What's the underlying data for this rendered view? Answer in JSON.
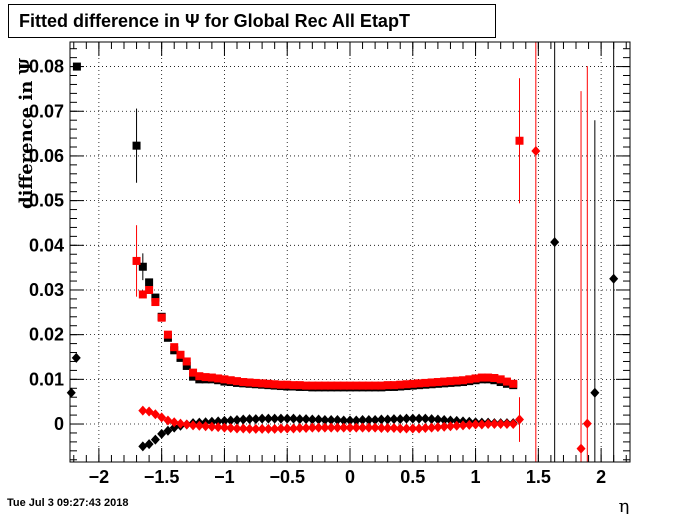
{
  "timestamp": "Tue Jul  3 09:27:43 2018",
  "chart_data": {
    "type": "scatter",
    "title": "Fitted difference in  Ψ  for Global Rec All EtapT",
    "xlabel": "η",
    "ylabel": "difference in Ψ",
    "xlim": [
      -2.23,
      2.23
    ],
    "ylim": [
      -0.0085,
      0.0855
    ],
    "grid": true,
    "x_ticks": [
      -2,
      -1.5,
      -1,
      -0.5,
      0,
      0.5,
      1,
      1.5,
      2
    ],
    "x_tick_labels": [
      "−2",
      "−1.5",
      "−1",
      "−0.5",
      "0",
      "0.5",
      "1",
      "1.5",
      "2"
    ],
    "y_ticks": [
      0,
      0.01,
      0.02,
      0.03,
      0.04,
      0.05,
      0.06,
      0.07,
      0.08
    ],
    "y_tick_labels": [
      "0",
      "0.01",
      "0.02",
      "0.03",
      "0.04",
      "0.05",
      "0.06",
      "0.07",
      "0.08"
    ],
    "colors": {
      "black": "#000000",
      "red": "#ff0000"
    },
    "series": [
      {
        "color": "black",
        "marker": "square",
        "points": [
          {
            "x": -2.175,
            "y": 0.08
          },
          {
            "x": -1.7,
            "y": 0.0623,
            "err": 0.0083
          },
          {
            "x": -1.65,
            "y": 0.0352,
            "err": 0.003
          },
          {
            "x": -1.6,
            "y": 0.0317
          },
          {
            "x": -1.55,
            "y": 0.0283
          },
          {
            "x": -1.5,
            "y": 0.024
          },
          {
            "x": -1.45,
            "y": 0.0193
          },
          {
            "x": -1.4,
            "y": 0.0165
          },
          {
            "x": -1.35,
            "y": 0.0148
          },
          {
            "x": -1.3,
            "y": 0.013
          },
          {
            "x": -1.25,
            "y": 0.0106
          },
          {
            "x": -1.2,
            "y": 0.01
          },
          {
            "x": -1.15,
            "y": 0.01
          },
          {
            "x": -1.1,
            "y": 0.01
          },
          {
            "x": -1.05,
            "y": 0.0098
          },
          {
            "x": -1.0,
            "y": 0.0095
          },
          {
            "x": -0.95,
            "y": 0.0094
          },
          {
            "x": -0.9,
            "y": 0.0092
          },
          {
            "x": -0.85,
            "y": 0.0091
          },
          {
            "x": -0.8,
            "y": 0.009
          },
          {
            "x": -0.75,
            "y": 0.0089
          },
          {
            "x": -0.7,
            "y": 0.0088
          },
          {
            "x": -0.65,
            "y": 0.0087
          },
          {
            "x": -0.6,
            "y": 0.0086
          },
          {
            "x": -0.55,
            "y": 0.0085
          },
          {
            "x": -0.5,
            "y": 0.0084
          },
          {
            "x": -0.45,
            "y": 0.0084
          },
          {
            "x": -0.4,
            "y": 0.0083
          },
          {
            "x": -0.35,
            "y": 0.0083
          },
          {
            "x": -0.3,
            "y": 0.0082
          },
          {
            "x": -0.25,
            "y": 0.0082
          },
          {
            "x": -0.2,
            "y": 0.0082
          },
          {
            "x": -0.15,
            "y": 0.0082
          },
          {
            "x": -0.1,
            "y": 0.0082
          },
          {
            "x": -0.05,
            "y": 0.0082
          },
          {
            "x": 0.0,
            "y": 0.0082
          },
          {
            "x": 0.05,
            "y": 0.0082
          },
          {
            "x": 0.1,
            "y": 0.0082
          },
          {
            "x": 0.15,
            "y": 0.0082
          },
          {
            "x": 0.2,
            "y": 0.0082
          },
          {
            "x": 0.25,
            "y": 0.0082
          },
          {
            "x": 0.3,
            "y": 0.0083
          },
          {
            "x": 0.35,
            "y": 0.0083
          },
          {
            "x": 0.4,
            "y": 0.0084
          },
          {
            "x": 0.45,
            "y": 0.0085
          },
          {
            "x": 0.5,
            "y": 0.0086
          },
          {
            "x": 0.55,
            "y": 0.0087
          },
          {
            "x": 0.6,
            "y": 0.0088
          },
          {
            "x": 0.65,
            "y": 0.0089
          },
          {
            "x": 0.7,
            "y": 0.009
          },
          {
            "x": 0.75,
            "y": 0.0091
          },
          {
            "x": 0.8,
            "y": 0.0092
          },
          {
            "x": 0.85,
            "y": 0.0093
          },
          {
            "x": 0.9,
            "y": 0.0094
          },
          {
            "x": 0.95,
            "y": 0.0096
          },
          {
            "x": 1.0,
            "y": 0.0098
          },
          {
            "x": 1.05,
            "y": 0.01
          },
          {
            "x": 1.1,
            "y": 0.01
          },
          {
            "x": 1.15,
            "y": 0.0098
          },
          {
            "x": 1.2,
            "y": 0.0094
          },
          {
            "x": 1.25,
            "y": 0.009
          },
          {
            "x": 1.3,
            "y": 0.0087
          }
        ]
      },
      {
        "color": "red",
        "marker": "square",
        "points": [
          {
            "x": -1.7,
            "y": 0.0365,
            "err": 0.008
          },
          {
            "x": -1.65,
            "y": 0.029
          },
          {
            "x": -1.6,
            "y": 0.03
          },
          {
            "x": -1.55,
            "y": 0.0273
          },
          {
            "x": -1.5,
            "y": 0.0238
          },
          {
            "x": -1.45,
            "y": 0.02
          },
          {
            "x": -1.4,
            "y": 0.0172
          },
          {
            "x": -1.35,
            "y": 0.0155
          },
          {
            "x": -1.3,
            "y": 0.014
          },
          {
            "x": -1.25,
            "y": 0.0115
          },
          {
            "x": -1.2,
            "y": 0.0107
          },
          {
            "x": -1.15,
            "y": 0.0105
          },
          {
            "x": -1.1,
            "y": 0.0104
          },
          {
            "x": -1.05,
            "y": 0.0102
          },
          {
            "x": -1.0,
            "y": 0.01
          },
          {
            "x": -0.95,
            "y": 0.0098
          },
          {
            "x": -0.9,
            "y": 0.0096
          },
          {
            "x": -0.85,
            "y": 0.0094
          },
          {
            "x": -0.8,
            "y": 0.0093
          },
          {
            "x": -0.75,
            "y": 0.0092
          },
          {
            "x": -0.7,
            "y": 0.0091
          },
          {
            "x": -0.65,
            "y": 0.009
          },
          {
            "x": -0.6,
            "y": 0.0089
          },
          {
            "x": -0.55,
            "y": 0.0088
          },
          {
            "x": -0.5,
            "y": 0.0088
          },
          {
            "x": -0.45,
            "y": 0.0087
          },
          {
            "x": -0.4,
            "y": 0.0087
          },
          {
            "x": -0.35,
            "y": 0.0086
          },
          {
            "x": -0.3,
            "y": 0.0086
          },
          {
            "x": -0.25,
            "y": 0.0086
          },
          {
            "x": -0.2,
            "y": 0.0086
          },
          {
            "x": -0.15,
            "y": 0.0086
          },
          {
            "x": -0.1,
            "y": 0.0086
          },
          {
            "x": -0.05,
            "y": 0.0086
          },
          {
            "x": 0.0,
            "y": 0.0086
          },
          {
            "x": 0.05,
            "y": 0.0086
          },
          {
            "x": 0.1,
            "y": 0.0086
          },
          {
            "x": 0.15,
            "y": 0.0086
          },
          {
            "x": 0.2,
            "y": 0.0086
          },
          {
            "x": 0.25,
            "y": 0.0086
          },
          {
            "x": 0.3,
            "y": 0.0087
          },
          {
            "x": 0.35,
            "y": 0.0087
          },
          {
            "x": 0.4,
            "y": 0.0088
          },
          {
            "x": 0.45,
            "y": 0.0089
          },
          {
            "x": 0.5,
            "y": 0.009
          },
          {
            "x": 0.55,
            "y": 0.0091
          },
          {
            "x": 0.6,
            "y": 0.0092
          },
          {
            "x": 0.65,
            "y": 0.0093
          },
          {
            "x": 0.7,
            "y": 0.0094
          },
          {
            "x": 0.75,
            "y": 0.0095
          },
          {
            "x": 0.8,
            "y": 0.0096
          },
          {
            "x": 0.85,
            "y": 0.0097
          },
          {
            "x": 0.9,
            "y": 0.0098
          },
          {
            "x": 0.95,
            "y": 0.01
          },
          {
            "x": 1.0,
            "y": 0.0102
          },
          {
            "x": 1.05,
            "y": 0.0104
          },
          {
            "x": 1.1,
            "y": 0.0104
          },
          {
            "x": 1.15,
            "y": 0.0103
          },
          {
            "x": 1.2,
            "y": 0.01
          },
          {
            "x": 1.25,
            "y": 0.0095
          },
          {
            "x": 1.3,
            "y": 0.009
          },
          {
            "x": 1.35,
            "y": 0.0634,
            "err": 0.014
          }
        ]
      },
      {
        "color": "black",
        "marker": "diamond",
        "points": [
          {
            "x": -2.22,
            "y": 0.007
          },
          {
            "x": -2.18,
            "y": 0.0148
          },
          {
            "x": -1.65,
            "y": -0.005
          },
          {
            "x": -1.6,
            "y": -0.0045
          },
          {
            "x": -1.55,
            "y": -0.0035
          },
          {
            "x": -1.5,
            "y": -0.0022
          },
          {
            "x": -1.45,
            "y": -0.0015
          },
          {
            "x": -1.4,
            "y": -0.0008
          },
          {
            "x": -1.35,
            "y": -0.0004
          },
          {
            "x": -1.3,
            "y": -0.0001
          },
          {
            "x": -1.25,
            "y": 0.0002
          },
          {
            "x": -1.2,
            "y": 0.0003
          },
          {
            "x": -1.15,
            "y": 0.0004
          },
          {
            "x": -1.1,
            "y": 0.0005
          },
          {
            "x": -1.05,
            "y": 0.0006
          },
          {
            "x": -1.0,
            "y": 0.0007
          },
          {
            "x": -0.95,
            "y": 0.0008
          },
          {
            "x": -0.9,
            "y": 0.0009
          },
          {
            "x": -0.85,
            "y": 0.001
          },
          {
            "x": -0.8,
            "y": 0.0011
          },
          {
            "x": -0.75,
            "y": 0.0011
          },
          {
            "x": -0.7,
            "y": 0.0012
          },
          {
            "x": -0.65,
            "y": 0.0012
          },
          {
            "x": -0.6,
            "y": 0.0012
          },
          {
            "x": -0.55,
            "y": 0.0012
          },
          {
            "x": -0.5,
            "y": 0.0012
          },
          {
            "x": -0.45,
            "y": 0.0012
          },
          {
            "x": -0.4,
            "y": 0.0011
          },
          {
            "x": -0.35,
            "y": 0.0011
          },
          {
            "x": -0.3,
            "y": 0.001
          },
          {
            "x": -0.25,
            "y": 0.001
          },
          {
            "x": -0.2,
            "y": 0.0009
          },
          {
            "x": -0.15,
            "y": 0.0009
          },
          {
            "x": -0.1,
            "y": 0.0009
          },
          {
            "x": -0.05,
            "y": 0.0008
          },
          {
            "x": 0.0,
            "y": 0.0008
          },
          {
            "x": 0.05,
            "y": 0.0008
          },
          {
            "x": 0.1,
            "y": 0.0009
          },
          {
            "x": 0.15,
            "y": 0.0009
          },
          {
            "x": 0.2,
            "y": 0.0009
          },
          {
            "x": 0.25,
            "y": 0.001
          },
          {
            "x": 0.3,
            "y": 0.001
          },
          {
            "x": 0.35,
            "y": 0.0011
          },
          {
            "x": 0.4,
            "y": 0.0011
          },
          {
            "x": 0.45,
            "y": 0.0012
          },
          {
            "x": 0.5,
            "y": 0.0012
          },
          {
            "x": 0.55,
            "y": 0.0012
          },
          {
            "x": 0.6,
            "y": 0.0012
          },
          {
            "x": 0.65,
            "y": 0.0011
          },
          {
            "x": 0.7,
            "y": 0.001
          },
          {
            "x": 0.75,
            "y": 0.0009
          },
          {
            "x": 0.8,
            "y": 0.0008
          },
          {
            "x": 0.85,
            "y": 0.0007
          },
          {
            "x": 0.9,
            "y": 0.0006
          },
          {
            "x": 0.95,
            "y": 0.0005
          },
          {
            "x": 1.0,
            "y": 0.0004
          },
          {
            "x": 1.05,
            "y": 0.0003
          },
          {
            "x": 1.1,
            "y": 0.0003
          },
          {
            "x": 1.15,
            "y": 0.0002
          },
          {
            "x": 1.2,
            "y": 0.0002
          },
          {
            "x": 1.25,
            "y": 0.0002
          },
          {
            "x": 1.3,
            "y": 0.0002
          },
          {
            "x": 1.63,
            "y": 0.0407,
            "err": 0.06
          },
          {
            "x": 1.95,
            "y": 0.007,
            "err": 0.061
          },
          {
            "x": 2.1,
            "y": 0.0325,
            "err": 0.06
          }
        ]
      },
      {
        "color": "red",
        "marker": "diamond",
        "points": [
          {
            "x": -1.65,
            "y": 0.003
          },
          {
            "x": -1.6,
            "y": 0.0028
          },
          {
            "x": -1.55,
            "y": 0.0022
          },
          {
            "x": -1.5,
            "y": 0.0015
          },
          {
            "x": -1.45,
            "y": 0.0008
          },
          {
            "x": -1.4,
            "y": 0.0004
          },
          {
            "x": -1.35,
            "y": 0.0001
          },
          {
            "x": -1.3,
            "y": -0.0001
          },
          {
            "x": -1.25,
            "y": -0.0003
          },
          {
            "x": -1.2,
            "y": -0.0004
          },
          {
            "x": -1.15,
            "y": -0.0005
          },
          {
            "x": -1.1,
            "y": -0.0006
          },
          {
            "x": -1.05,
            "y": -0.0007
          },
          {
            "x": -1.0,
            "y": -0.0008
          },
          {
            "x": -0.95,
            "y": -0.0009
          },
          {
            "x": -0.9,
            "y": -0.001
          },
          {
            "x": -0.85,
            "y": -0.001
          },
          {
            "x": -0.8,
            "y": -0.0011
          },
          {
            "x": -0.75,
            "y": -0.0011
          },
          {
            "x": -0.7,
            "y": -0.0011
          },
          {
            "x": -0.65,
            "y": -0.0011
          },
          {
            "x": -0.6,
            "y": -0.0011
          },
          {
            "x": -0.55,
            "y": -0.001
          },
          {
            "x": -0.5,
            "y": -0.001
          },
          {
            "x": -0.45,
            "y": -0.001
          },
          {
            "x": -0.4,
            "y": -0.0009
          },
          {
            "x": -0.35,
            "y": -0.0009
          },
          {
            "x": -0.3,
            "y": -0.0008
          },
          {
            "x": -0.25,
            "y": -0.0008
          },
          {
            "x": -0.2,
            "y": -0.0008
          },
          {
            "x": -0.15,
            "y": -0.0008
          },
          {
            "x": -0.1,
            "y": -0.0008
          },
          {
            "x": -0.05,
            "y": -0.0008
          },
          {
            "x": 0.0,
            "y": -0.0008
          },
          {
            "x": 0.05,
            "y": -0.0008
          },
          {
            "x": 0.1,
            "y": -0.0008
          },
          {
            "x": 0.15,
            "y": -0.0008
          },
          {
            "x": 0.2,
            "y": -0.0008
          },
          {
            "x": 0.25,
            "y": -0.0009
          },
          {
            "x": 0.3,
            "y": -0.0009
          },
          {
            "x": 0.35,
            "y": -0.0009
          },
          {
            "x": 0.4,
            "y": -0.001
          },
          {
            "x": 0.45,
            "y": -0.001
          },
          {
            "x": 0.5,
            "y": -0.001
          },
          {
            "x": 0.55,
            "y": -0.001
          },
          {
            "x": 0.6,
            "y": -0.0009
          },
          {
            "x": 0.65,
            "y": -0.0008
          },
          {
            "x": 0.7,
            "y": -0.0007
          },
          {
            "x": 0.75,
            "y": -0.0006
          },
          {
            "x": 0.8,
            "y": -0.0005
          },
          {
            "x": 0.85,
            "y": -0.0004
          },
          {
            "x": 0.9,
            "y": -0.0003
          },
          {
            "x": 0.95,
            "y": -0.0002
          },
          {
            "x": 1.0,
            "y": -0.0001
          },
          {
            "x": 1.05,
            "y": -0.0001
          },
          {
            "x": 1.1,
            "y": 0.0
          },
          {
            "x": 1.15,
            "y": 0.0
          },
          {
            "x": 1.2,
            "y": 0.0
          },
          {
            "x": 1.25,
            "y": 0.0
          },
          {
            "x": 1.3,
            "y": 0.0
          },
          {
            "x": 1.35,
            "y": 0.001,
            "err": 0.005
          },
          {
            "x": 1.48,
            "y": 0.0611,
            "err": 0.08
          },
          {
            "x": 1.84,
            "y": -0.0055,
            "err": 0.08
          },
          {
            "x": 1.89,
            "y": 0.0001,
            "err": 0.08
          }
        ]
      }
    ]
  }
}
